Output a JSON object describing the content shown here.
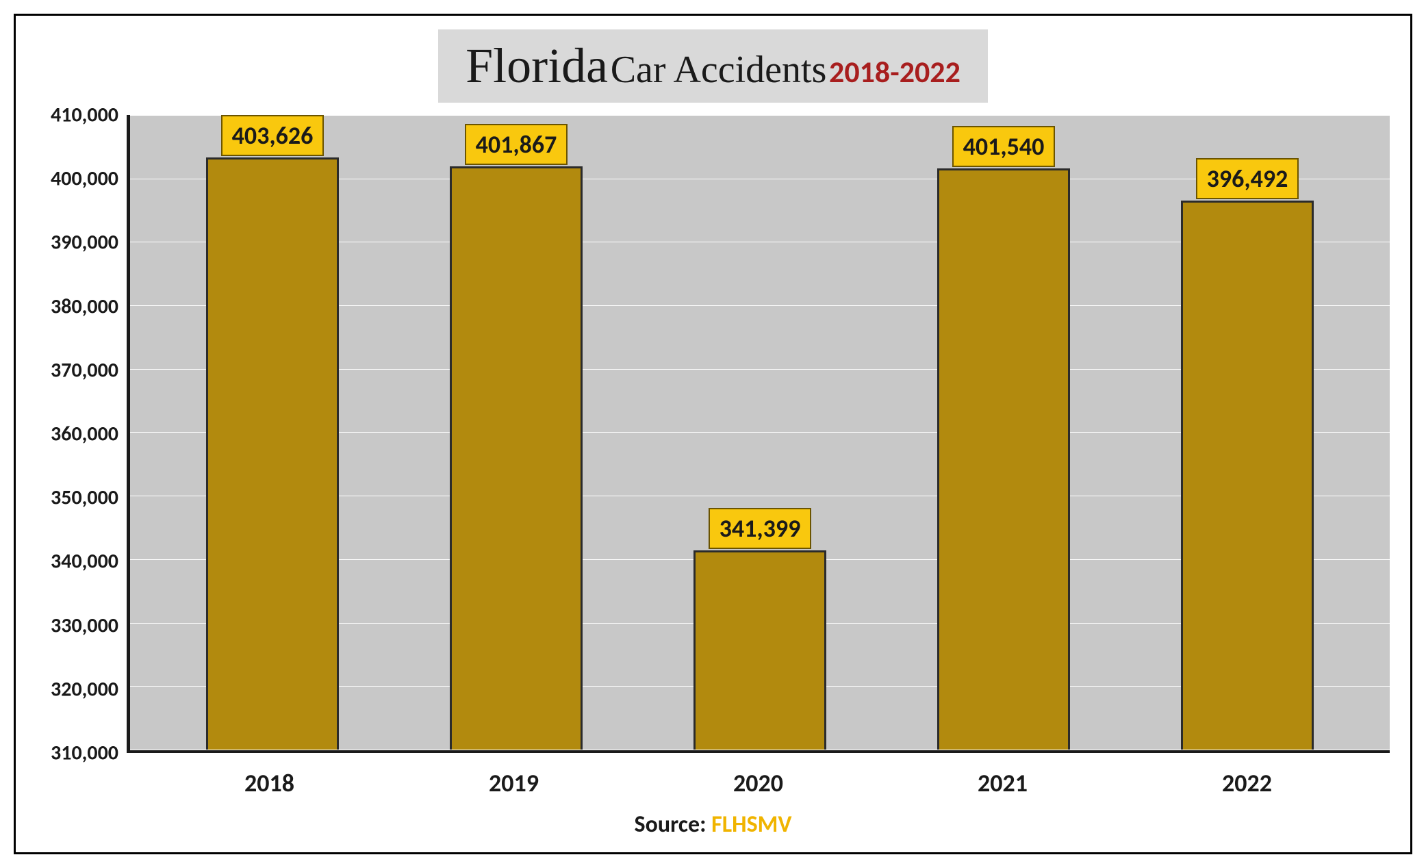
{
  "chart": {
    "type": "bar",
    "title_main": "Florida",
    "title_sub": "Car Accidents",
    "title_years": "2018-2022",
    "title_bg": "#d9d9d9",
    "title_main_color": "#1a1a1a",
    "title_years_color": "#a81e1e",
    "title_main_fontfamily": "Georgia",
    "title_main_fontsize": 72,
    "title_sub_fontsize": 56,
    "title_years_fontsize": 44,
    "categories": [
      "2018",
      "2019",
      "2020",
      "2021",
      "2022"
    ],
    "values": [
      403626,
      401867,
      341399,
      401540,
      396492
    ],
    "value_labels": [
      "403,626",
      "401,867",
      "341,399",
      "401,540",
      "396,492"
    ],
    "bar_color": "#b28a0e",
    "bar_border_color": "#2b2b2b",
    "bar_border_width": 3,
    "label_bg": "#f9c80e",
    "label_border": "#6b5400",
    "label_text_color": "#1a1a1a",
    "label_fontsize": 36,
    "plot_bg": "#c8c8c8",
    "grid_color": "#ffffff",
    "axis_color": "#1a1a1a",
    "axis_width": 5,
    "ylim": [
      310000,
      410000
    ],
    "ytick_step": 10000,
    "yticks": [
      410000,
      400000,
      390000,
      380000,
      370000,
      360000,
      350000,
      340000,
      330000,
      320000,
      310000
    ],
    "ytick_labels": [
      "410,000",
      "400,000",
      "390,000",
      "380,000",
      "370,000",
      "360,000",
      "350,000",
      "340,000",
      "330,000",
      "320,000",
      "310,000"
    ],
    "xtick_fontsize": 36,
    "ytick_fontsize": 30,
    "source_prefix": "Source: ",
    "source_name": "FLHSMV",
    "source_fontsize": 34,
    "source_name_color": "#f0b400",
    "container_border_color": "#000000",
    "container_border_width": 3,
    "background": "#ffffff",
    "bar_width_ratio": 0.78
  }
}
